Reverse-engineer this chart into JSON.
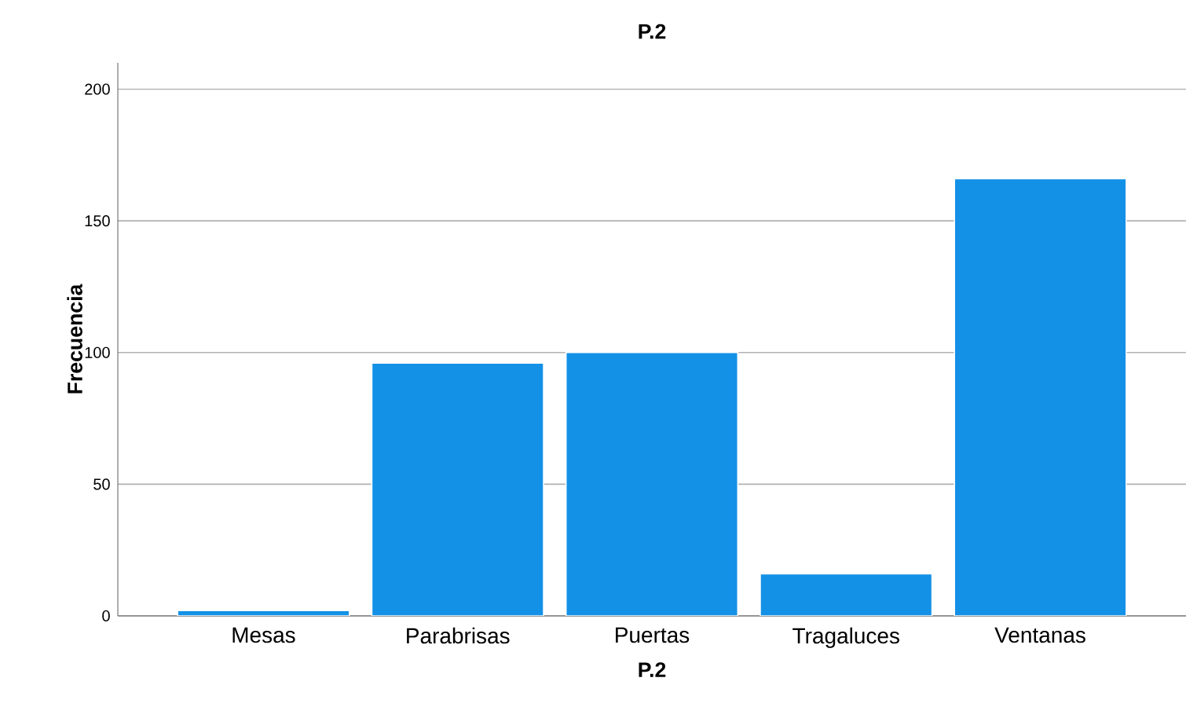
{
  "chart_data": {
    "type": "bar",
    "title": "P.2",
    "xlabel": "P.2",
    "ylabel": "Frecuencia",
    "categories": [
      "Mesas",
      "Parabrisas",
      "Puertas",
      "Tragaluces",
      "Ventanas"
    ],
    "values": [
      2,
      96,
      100,
      16,
      166
    ],
    "color": "#1391e6",
    "ylim": [
      0,
      210
    ],
    "yticks": [
      0,
      50,
      100,
      150,
      200
    ],
    "grid": "y"
  }
}
